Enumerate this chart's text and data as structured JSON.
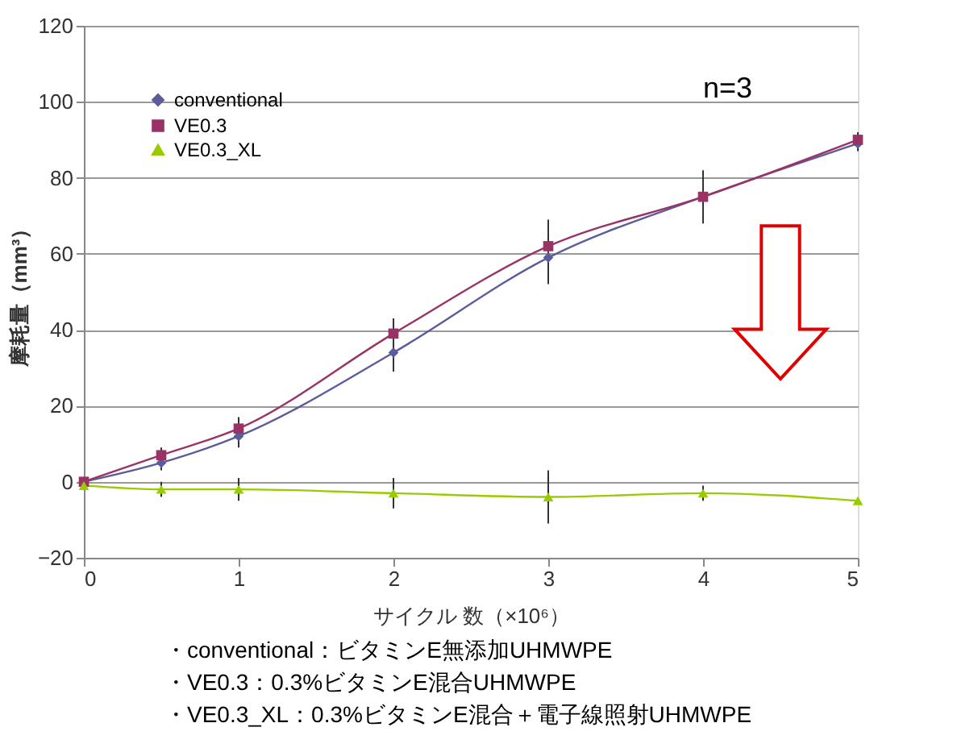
{
  "chart_data": {
    "type": "line",
    "ylabel": "摩耗量（mm³）",
    "xlabel": "サイクル 数（×10⁶）",
    "x": [
      0,
      0.5,
      1,
      2,
      3,
      4,
      5
    ],
    "series": [
      {
        "name": "conventional",
        "color": "#5c5c9c",
        "marker": "diamond",
        "values": [
          0,
          5,
          12,
          34,
          59,
          75,
          89
        ],
        "errors": [
          1,
          2,
          3,
          5,
          7,
          7,
          2
        ]
      },
      {
        "name": "VE0.3",
        "color": "#993366",
        "marker": "square",
        "values": [
          0,
          7,
          14,
          39,
          62,
          75,
          90
        ],
        "errors": [
          1,
          2,
          3,
          4,
          7,
          6,
          2
        ]
      },
      {
        "name": "VE0.3_XL",
        "color": "#99cc00",
        "marker": "triangle",
        "values": [
          -1,
          -2,
          -2,
          -3,
          -4,
          -3,
          -5
        ],
        "errors": [
          1,
          2,
          3,
          4,
          7,
          2,
          null
        ]
      }
    ],
    "xlim": [
      0,
      5
    ],
    "xticks": [
      0,
      1,
      2,
      3,
      4,
      5
    ],
    "ylim": [
      -20,
      120
    ],
    "yticks": [
      -20,
      0,
      20,
      40,
      60,
      80,
      100,
      120
    ],
    "grid": "y",
    "legend": "top left",
    "line_style": "solid",
    "annotations": [
      "n=3",
      "・conventional：ビタミンE無添加UHMWPE",
      "・VE0.3：0.3%ビタミンE混合UHMWPE",
      "・VE0.3_XL：0.3%ビタミンE混合＋電子線照射UHMWPE"
    ]
  }
}
